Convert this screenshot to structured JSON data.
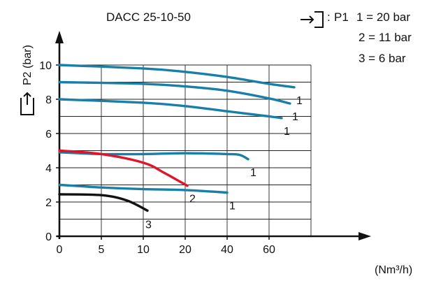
{
  "chart_data": {
    "type": "line",
    "title": "DACC 25-10-50",
    "ylabel": "P2 (bar)",
    "xlabel": "(Nm³/h)",
    "x_ticks": [
      "0",
      "5",
      "10",
      "20",
      "40",
      "60"
    ],
    "y_ticks": [
      "0",
      "2",
      "4",
      "6",
      "8",
      "10"
    ],
    "legend": {
      "inlet_label": "P1",
      "entries": [
        "1 = 20 bar",
        "2 = 11 bar",
        "3 = 6 bar"
      ]
    },
    "colors": {
      "curve_1": "#1a7fa8",
      "curve_2": "#e0142a",
      "curve_3": "#111111",
      "grid": "#222222"
    },
    "series": [
      {
        "name": "1",
        "label_pos": "end",
        "color": "#1a7fa8",
        "points": [
          [
            0,
            10
          ],
          [
            10,
            9.8
          ],
          [
            20,
            9.6
          ],
          [
            40,
            9.3
          ],
          [
            60,
            8.9
          ],
          [
            72,
            8.7
          ]
        ]
      },
      {
        "name": "1",
        "label_pos": "end",
        "color": "#1a7fa8",
        "points": [
          [
            0,
            9.0
          ],
          [
            10,
            8.9
          ],
          [
            20,
            8.75
          ],
          [
            40,
            8.5
          ],
          [
            60,
            8.05
          ],
          [
            70,
            7.75
          ]
        ]
      },
      {
        "name": "1",
        "label_pos": "end",
        "color": "#1a7fa8",
        "points": [
          [
            0,
            8.0
          ],
          [
            10,
            7.8
          ],
          [
            20,
            7.6
          ],
          [
            40,
            7.3
          ],
          [
            60,
            7.0
          ],
          [
            66,
            6.9
          ]
        ]
      },
      {
        "name": "1",
        "label_pos": "end",
        "color": "#1a7fa8",
        "points": [
          [
            0,
            4.9
          ],
          [
            5,
            4.8
          ],
          [
            10,
            4.8
          ],
          [
            20,
            4.85
          ],
          [
            40,
            4.8
          ],
          [
            46,
            4.75
          ],
          [
            50,
            4.5
          ]
        ]
      },
      {
        "name": "2",
        "label_pos": "end",
        "color": "#e0142a",
        "points": [
          [
            0,
            5.0
          ],
          [
            5,
            4.8
          ],
          [
            10,
            4.3
          ],
          [
            15,
            3.7
          ],
          [
            21,
            2.95
          ]
        ]
      },
      {
        "name": "1",
        "label_pos": "end",
        "color": "#1a7fa8",
        "points": [
          [
            0,
            3.0
          ],
          [
            5,
            2.85
          ],
          [
            10,
            2.75
          ],
          [
            20,
            2.7
          ],
          [
            40,
            2.55
          ]
        ]
      },
      {
        "name": "3",
        "label_pos": "below",
        "color": "#111111",
        "points": [
          [
            0,
            2.45
          ],
          [
            5,
            2.4
          ],
          [
            8,
            2.1
          ],
          [
            11,
            1.5
          ]
        ]
      }
    ]
  }
}
